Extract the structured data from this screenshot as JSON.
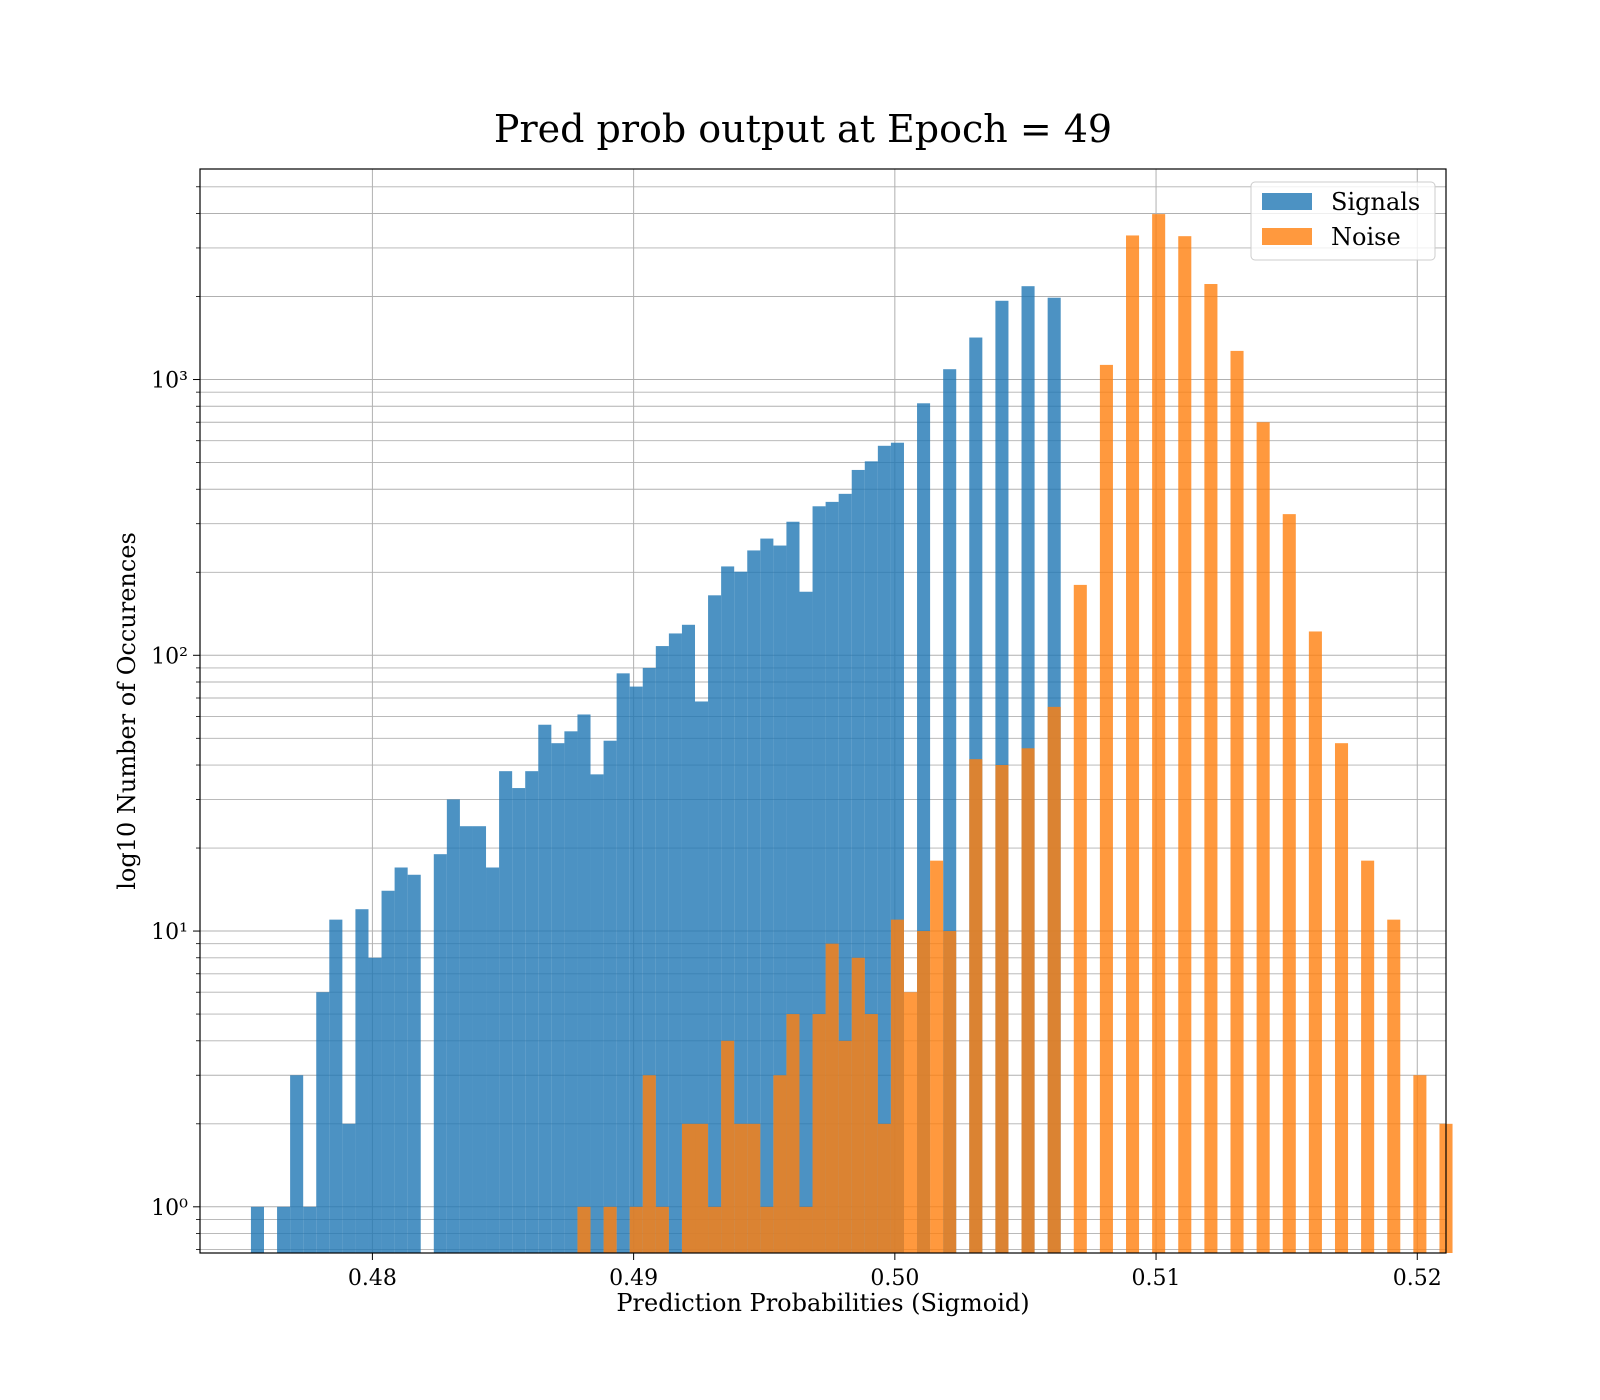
{
  "chart_data": {
    "type": "bar",
    "title": "Pred prob output at Epoch = 49",
    "xlabel": "Prediction Probabilities (Sigmoid)",
    "ylabel": "log10 Number of Occurences",
    "y_scale": "log",
    "xlim": [
      0.4734,
      0.5211
    ],
    "ylim": [
      0.68,
      5800
    ],
    "grid": true,
    "grid_minor": true,
    "legend_position": "top-right",
    "x_ticks": [
      "0.48",
      "0.49",
      "0.50",
      "0.51",
      "0.52"
    ],
    "x_tick_values": [
      0.48,
      0.49,
      0.5,
      0.51,
      0.52
    ],
    "y_ticks": [
      "10⁰",
      "10¹",
      "10²",
      "10³"
    ],
    "y_tick_values": [
      1,
      10,
      100,
      1000
    ],
    "bin_width": 0.0005,
    "series": [
      {
        "name": "Signals",
        "color": "#1f77b4",
        "opacity": 0.8,
        "bins": [
          [
            0.4756,
            1
          ],
          [
            0.4766,
            1
          ],
          [
            0.4771,
            3
          ],
          [
            0.4776,
            1
          ],
          [
            0.4781,
            6
          ],
          [
            0.4786,
            11
          ],
          [
            0.4791,
            2
          ],
          [
            0.4796,
            12
          ],
          [
            0.4801,
            8
          ],
          [
            0.4806,
            14
          ],
          [
            0.4811,
            17
          ],
          [
            0.4816,
            16
          ],
          [
            0.4826,
            19
          ],
          [
            0.4831,
            30
          ],
          [
            0.4836,
            24
          ],
          [
            0.4841,
            24
          ],
          [
            0.4846,
            17
          ],
          [
            0.4851,
            38
          ],
          [
            0.4856,
            33
          ],
          [
            0.4861,
            38
          ],
          [
            0.4866,
            56
          ],
          [
            0.4871,
            48
          ],
          [
            0.4876,
            53
          ],
          [
            0.4881,
            61
          ],
          [
            0.4886,
            37
          ],
          [
            0.4891,
            49
          ],
          [
            0.4896,
            86
          ],
          [
            0.4901,
            77
          ],
          [
            0.4906,
            90
          ],
          [
            0.4911,
            108
          ],
          [
            0.4916,
            120
          ],
          [
            0.4921,
            129
          ],
          [
            0.4926,
            68
          ],
          [
            0.4931,
            165
          ],
          [
            0.4936,
            210
          ],
          [
            0.4941,
            201
          ],
          [
            0.4946,
            240
          ],
          [
            0.4951,
            265
          ],
          [
            0.4956,
            250
          ],
          [
            0.4961,
            305
          ],
          [
            0.4966,
            170
          ],
          [
            0.4971,
            347
          ],
          [
            0.4976,
            360
          ],
          [
            0.4981,
            385
          ],
          [
            0.4986,
            470
          ],
          [
            0.4991,
            505
          ],
          [
            0.4996,
            575
          ],
          [
            0.5001,
            590
          ],
          [
            0.5011,
            820
          ],
          [
            0.5021,
            1090
          ],
          [
            0.5031,
            1420
          ],
          [
            0.5041,
            1930
          ],
          [
            0.5051,
            2180
          ],
          [
            0.5061,
            1980
          ]
        ]
      },
      {
        "name": "Noise",
        "color": "#ff7f0e",
        "opacity": 0.8,
        "bins": [
          [
            0.4881,
            1
          ],
          [
            0.4891,
            1
          ],
          [
            0.4901,
            1
          ],
          [
            0.4906,
            3
          ],
          [
            0.4911,
            1
          ],
          [
            0.4921,
            2
          ],
          [
            0.4926,
            2
          ],
          [
            0.4931,
            1
          ],
          [
            0.4936,
            4
          ],
          [
            0.4941,
            2
          ],
          [
            0.4946,
            2
          ],
          [
            0.4951,
            1
          ],
          [
            0.4956,
            3
          ],
          [
            0.4961,
            5
          ],
          [
            0.4966,
            1
          ],
          [
            0.4971,
            5
          ],
          [
            0.4976,
            9
          ],
          [
            0.4981,
            4
          ],
          [
            0.4986,
            8
          ],
          [
            0.4991,
            5
          ],
          [
            0.4996,
            2
          ],
          [
            0.5001,
            11
          ],
          [
            0.5006,
            6
          ],
          [
            0.5011,
            10
          ],
          [
            0.5016,
            18
          ],
          [
            0.5021,
            10
          ],
          [
            0.5031,
            42
          ],
          [
            0.5041,
            40
          ],
          [
            0.5051,
            46
          ],
          [
            0.5061,
            65
          ],
          [
            0.5071,
            180
          ],
          [
            0.5081,
            1130
          ],
          [
            0.5091,
            3330
          ],
          [
            0.5101,
            3980
          ],
          [
            0.5111,
            3310
          ],
          [
            0.5121,
            2220
          ],
          [
            0.5131,
            1270
          ],
          [
            0.5141,
            700
          ],
          [
            0.5151,
            325
          ],
          [
            0.5161,
            122
          ],
          [
            0.5171,
            48
          ],
          [
            0.5181,
            18
          ],
          [
            0.5191,
            11
          ],
          [
            0.5201,
            3
          ],
          [
            0.5211,
            2
          ]
        ]
      }
    ]
  }
}
